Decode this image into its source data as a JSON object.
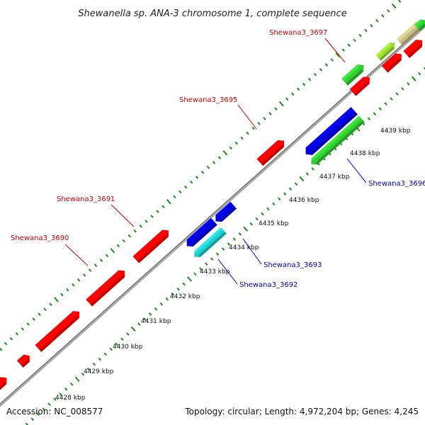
{
  "title": "Shewanella sp. ANA-3 chromosome 1, complete sequence",
  "footer": {
    "accession": "Accession: NC_008577",
    "summary": "Topology: circular; Length: 4,972,204 bp; Genes: 4,245"
  },
  "colors": {
    "backbone": "#8a8a8a",
    "ticks": "#1e8a1e",
    "forward_label": "#cc0000",
    "reverse_label": "#0000bb",
    "red": "#ff0000",
    "blue": "#0000e0",
    "green": "#33cc33",
    "cyan": "#22cccc",
    "lime": "#99dd33",
    "khaki": "#c8bd88"
  },
  "kbp_labels": [
    "4428 kbp",
    "4429 kbp",
    "4430 kbp",
    "4431 kbp",
    "4432 kbp",
    "4433 kbp",
    "4434 kbp",
    "4435 kbp",
    "4436 kbp",
    "4437 kbp",
    "4438 kbp",
    "4439 kbp"
  ],
  "genes": [
    {
      "label": "",
      "strand": "forward",
      "color": "red"
    },
    {
      "label": "",
      "strand": "forward",
      "color": "red"
    },
    {
      "label": "Shewana3_3690",
      "strand": "forward",
      "color": "red"
    },
    {
      "label": "",
      "strand": "forward",
      "color": "red"
    },
    {
      "label": "Shewana3_3691",
      "strand": "forward",
      "color": "red"
    },
    {
      "label": "Shewana3_3692",
      "strand": "reverse",
      "color": "cyan"
    },
    {
      "label": "Shewana3_3693",
      "strand": "reverse",
      "color": "blue"
    },
    {
      "label": "",
      "strand": "reverse",
      "color": "blue"
    },
    {
      "label": "Shewana3_3695",
      "strand": "forward",
      "color": "red"
    },
    {
      "label": "",
      "strand": "reverse",
      "color": "blue"
    },
    {
      "label": "Shewana3_3696",
      "strand": "reverse",
      "color": "green"
    },
    {
      "label": "",
      "strand": "forward",
      "color": "red"
    },
    {
      "label": "Shewana3_3697",
      "strand": "forward",
      "color": "green"
    },
    {
      "label": "",
      "strand": "forward",
      "color": "lime"
    },
    {
      "label": "",
      "strand": "forward",
      "color": "red"
    },
    {
      "label": "",
      "strand": "forward",
      "color": "khaki"
    },
    {
      "label": "",
      "strand": "forward",
      "color": "red"
    },
    {
      "label": "",
      "strand": "forward",
      "color": "green"
    }
  ]
}
